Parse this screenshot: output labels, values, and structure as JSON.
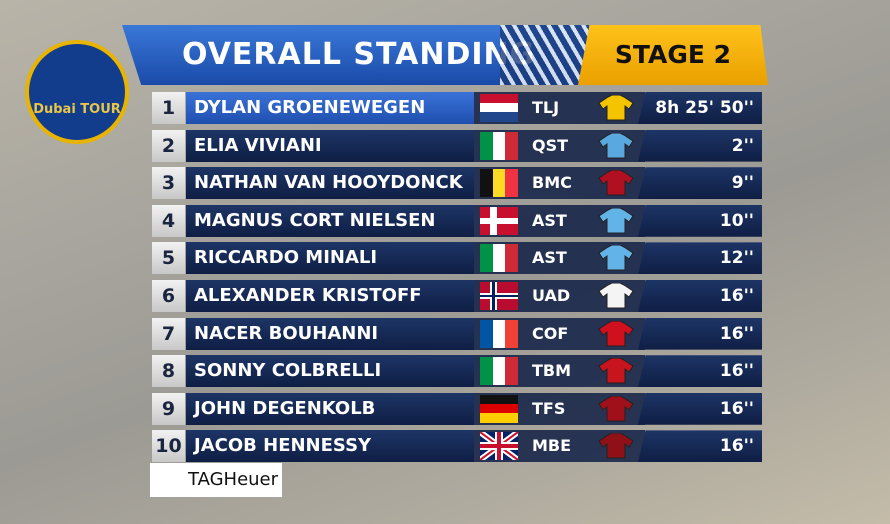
{
  "logo": "Dubai TOUR",
  "header": {
    "title": "OVERALL STANDING",
    "stage": "STAGE 2"
  },
  "rows": [
    {
      "rank": "1",
      "name": "DYLAN GROENEWEGEN",
      "team": "TLJ",
      "time": "8h 25' 50''"
    },
    {
      "rank": "2",
      "name": "ELIA VIVIANI",
      "team": "QST",
      "time": "2''"
    },
    {
      "rank": "3",
      "name": "NATHAN VAN HOOYDONCK",
      "team": "BMC",
      "time": "9''"
    },
    {
      "rank": "4",
      "name": "MAGNUS CORT NIELSEN",
      "team": "AST",
      "time": "10''"
    },
    {
      "rank": "5",
      "name": "RICCARDO MINALI",
      "team": "AST",
      "time": "12''"
    },
    {
      "rank": "6",
      "name": "ALEXANDER KRISTOFF",
      "team": "UAD",
      "time": "16''"
    },
    {
      "rank": "7",
      "name": "NACER BOUHANNI",
      "team": "COF",
      "time": "16''"
    },
    {
      "rank": "8",
      "name": "SONNY COLBRELLI",
      "team": "TBM",
      "time": "16''"
    },
    {
      "rank": "9",
      "name": "JOHN DEGENKOLB",
      "team": "TFS",
      "time": "16''"
    },
    {
      "rank": "10",
      "name": "JACOB HENNESSY",
      "team": "MBE",
      "time": "16''"
    }
  ],
  "sponsor": "TAGHeuer"
}
